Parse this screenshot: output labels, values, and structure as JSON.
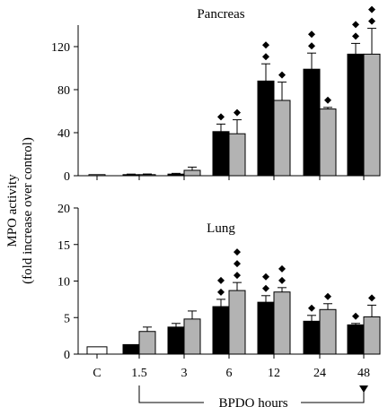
{
  "ylabel_line1": "MPO activity",
  "ylabel_line2": "(fold increase over control)",
  "xlabel": "BPDO hours",
  "colors": {
    "series_a": "#000000",
    "series_b": "#b3b3b3",
    "control": "#ffffff",
    "marker": "#000000"
  },
  "chart_data": [
    {
      "type": "bar",
      "title": "Pancreas",
      "categories": [
        "C",
        "1.5",
        "3",
        "6",
        "12",
        "24",
        "48"
      ],
      "ylim": [
        0,
        140
      ],
      "yticks": [
        0,
        40,
        80,
        120
      ],
      "control": {
        "value": 1,
        "error": 0
      },
      "series": [
        {
          "values": [
            null,
            1,
            1.5,
            41,
            88,
            99,
            113
          ],
          "errors": [
            null,
            0.5,
            0.7,
            7,
            16,
            15,
            10
          ],
          "markers": [
            0,
            0,
            0,
            1,
            2,
            2,
            2
          ]
        },
        {
          "values": [
            null,
            1,
            5,
            39,
            70,
            62,
            113
          ],
          "errors": [
            null,
            0.6,
            3,
            13,
            17,
            1.5,
            24
          ],
          "markers": [
            0,
            0,
            0,
            1,
            1,
            1,
            2
          ]
        }
      ]
    },
    {
      "type": "bar",
      "title": "Lung",
      "categories": [
        "C",
        "1.5",
        "3",
        "6",
        "12",
        "24",
        "48"
      ],
      "ylim": [
        0,
        20
      ],
      "yticks": [
        0,
        5,
        10,
        15,
        20
      ],
      "control": {
        "value": 1,
        "error": 0
      },
      "series": [
        {
          "values": [
            null,
            1.3,
            3.7,
            6.5,
            7.1,
            4.5,
            4.0
          ],
          "errors": [
            null,
            0,
            0.5,
            1.0,
            0.9,
            0.8,
            0.2
          ],
          "markers": [
            0,
            0,
            0,
            2,
            2,
            1,
            1
          ]
        },
        {
          "values": [
            null,
            3.1,
            4.8,
            8.7,
            8.5,
            6.1,
            5.1
          ],
          "errors": [
            null,
            0.6,
            1.1,
            1.1,
            0.6,
            0.8,
            1.6
          ],
          "markers": [
            0,
            0,
            0,
            3,
            2,
            1,
            1
          ]
        }
      ]
    }
  ]
}
